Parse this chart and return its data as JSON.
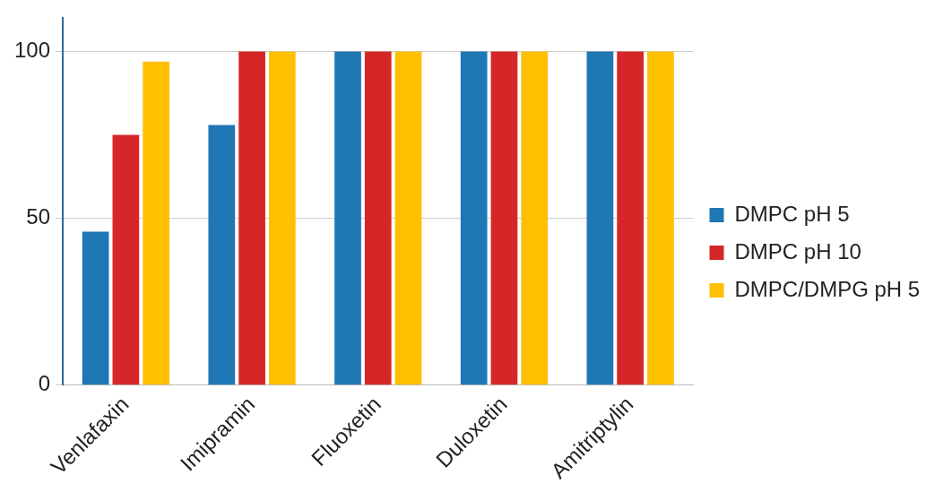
{
  "chart_data": {
    "type": "bar",
    "categories": [
      "Venlafaxin",
      "Imipramin",
      "Fluoxetin",
      "Duloxetin",
      "Amitriptylin"
    ],
    "series": [
      {
        "name": "DMPC pH 5",
        "color": "#1f77b4",
        "values": [
          46,
          78,
          100,
          100,
          100
        ]
      },
      {
        "name": "DMPC pH 10",
        "color": "#d62728",
        "values": [
          75,
          100,
          100,
          100,
          100
        ]
      },
      {
        "name": "DMPC/DMPG pH 5",
        "color": "#ffc000",
        "values": [
          97,
          100,
          100,
          100,
          100
        ]
      }
    ],
    "ylim": [
      0,
      110
    ],
    "yticks": [
      0,
      50,
      100
    ],
    "grid": "y",
    "legend": "right"
  }
}
